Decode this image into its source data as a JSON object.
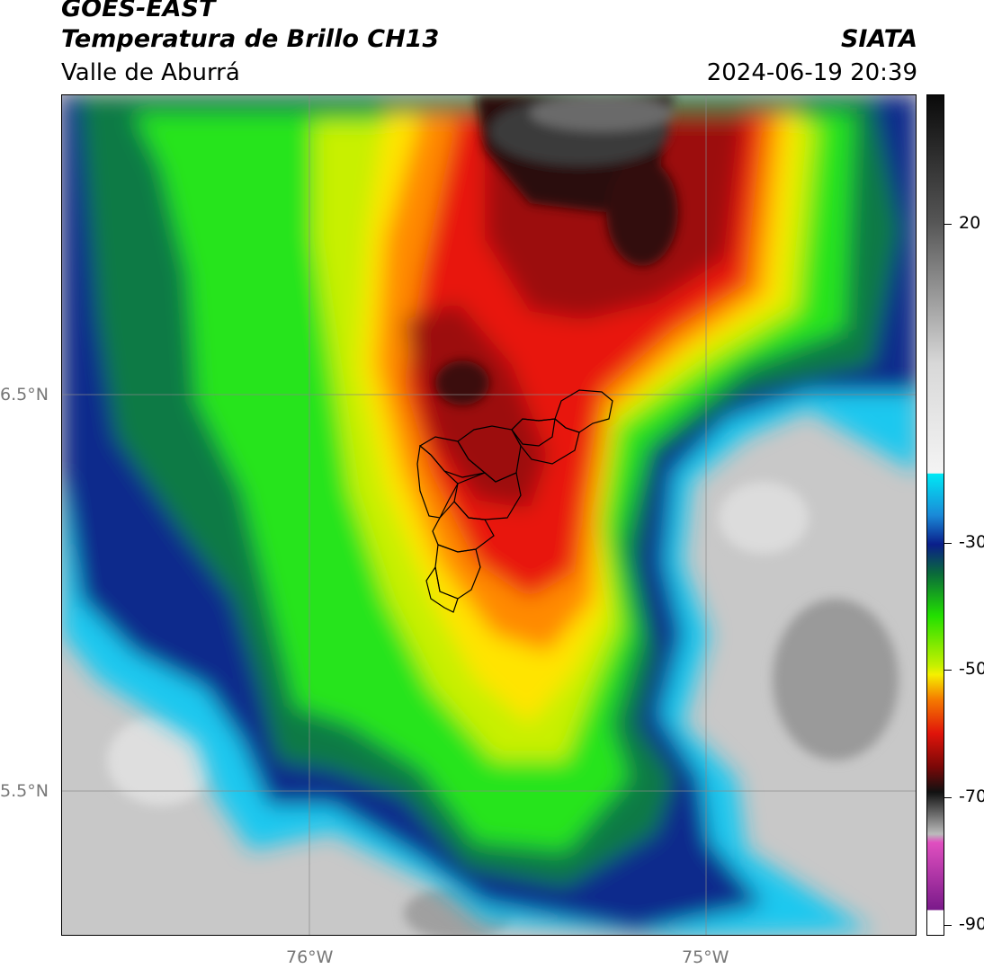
{
  "header": {
    "satellite": "GOES-EAST",
    "product": "Temperatura de Brillo CH13",
    "region": "Valle de Aburrá",
    "org": "SIATA",
    "datetime": "2024-06-19 20:39"
  },
  "axes": {
    "lat_labels": [
      "6.5°N",
      "5.5°N"
    ],
    "lon_labels": [
      "76°W",
      "75°W"
    ]
  },
  "colorbar": {
    "labels": [
      "20",
      "-30",
      "-50",
      "-70",
      "-90"
    ],
    "colors": {
      "cold_black": "#111111",
      "red": "#e0140a",
      "orange": "#f57a00",
      "yellow": "#f5f000",
      "green": "#22e000",
      "dark_green": "#0a6b3a",
      "dark_blue": "#0a1e8a",
      "cyan": "#00e8f5",
      "gray": "#bdbdbd",
      "pink": "#e04fc0",
      "purple": "#7a1a8a"
    }
  }
}
